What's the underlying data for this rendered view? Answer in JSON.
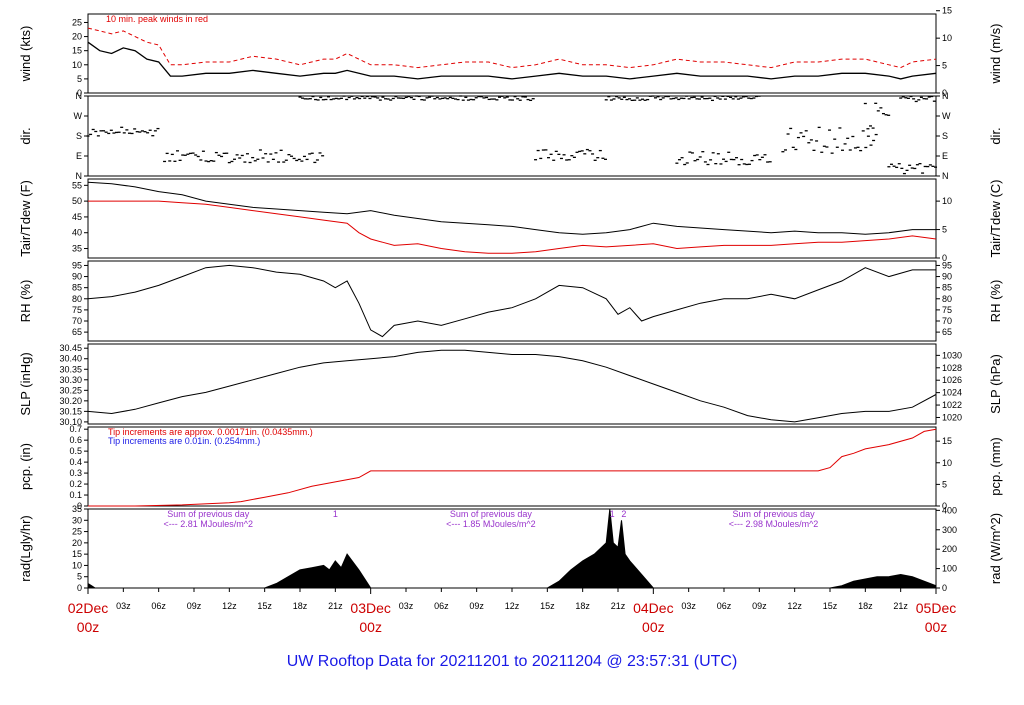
{
  "title": "UW Rooftop Data for 20211201  to  20211204 @ 23:57:31  (UTC)",
  "colors": {
    "axis": "#000000",
    "primary": "#000000",
    "red": "#e00000",
    "blue": "#1a1ae6",
    "purple": "#9933cc",
    "day_label": "#cc0000"
  },
  "x_axis": {
    "unit": "hours since 2021-12-02 00z",
    "range": [
      0,
      72
    ],
    "hour_ticks": [
      {
        "x": 3,
        "label": "03z"
      },
      {
        "x": 6,
        "label": "06z"
      },
      {
        "x": 9,
        "label": "09z"
      },
      {
        "x": 12,
        "label": "12z"
      },
      {
        "x": 15,
        "label": "15z"
      },
      {
        "x": 18,
        "label": "18z"
      },
      {
        "x": 21,
        "label": "21z"
      },
      {
        "x": 27,
        "label": "03z"
      },
      {
        "x": 30,
        "label": "06z"
      },
      {
        "x": 33,
        "label": "09z"
      },
      {
        "x": 36,
        "label": "12z"
      },
      {
        "x": 39,
        "label": "15z"
      },
      {
        "x": 42,
        "label": "18z"
      },
      {
        "x": 45,
        "label": "21z"
      },
      {
        "x": 51,
        "label": "03z"
      },
      {
        "x": 54,
        "label": "06z"
      },
      {
        "x": 57,
        "label": "09z"
      },
      {
        "x": 60,
        "label": "12z"
      },
      {
        "x": 63,
        "label": "15z"
      },
      {
        "x": 66,
        "label": "18z"
      },
      {
        "x": 69,
        "label": "21z"
      }
    ],
    "day_labels": [
      {
        "x": 0,
        "day": "02Dec",
        "time": "00z"
      },
      {
        "x": 24,
        "day": "03Dec",
        "time": "00z"
      },
      {
        "x": 48,
        "day": "04Dec",
        "time": "00z"
      },
      {
        "x": 72,
        "day": "05Dec",
        "time": "00z"
      }
    ]
  },
  "chart_data": [
    {
      "id": "wind",
      "type": "line",
      "ylabel": "wind (kts)",
      "ylabel_right": "wind (m/s)",
      "ylim": [
        0,
        28
      ],
      "yticks": [
        0,
        5,
        10,
        15,
        20,
        25
      ],
      "right_ticks": [
        {
          "label": "0",
          "value": 0
        },
        {
          "label": "5",
          "value": 9.72
        },
        {
          "label": "10",
          "value": 19.44
        },
        {
          "label": "15",
          "value": 29.16
        }
      ],
      "note": "10 min. peak winds in red",
      "series": [
        {
          "name": "wind",
          "color": "#000000",
          "x": [
            0,
            1,
            2,
            3,
            4,
            5,
            6,
            7,
            8,
            10,
            12,
            14,
            16,
            18,
            20,
            21,
            22,
            24,
            26,
            28,
            30,
            32,
            34,
            36,
            38,
            40,
            42,
            44,
            46,
            48,
            50,
            52,
            54,
            56,
            58,
            60,
            62,
            64,
            66,
            68,
            69,
            70,
            72
          ],
          "y": [
            18,
            15,
            14,
            16,
            15,
            12,
            11,
            6,
            6,
            7,
            7,
            8,
            7,
            6,
            7,
            7,
            8,
            6,
            6,
            5,
            6,
            6,
            6,
            5,
            6,
            7,
            6,
            6,
            5,
            6,
            7,
            6,
            6,
            6,
            5,
            6,
            6,
            7,
            7,
            6,
            5,
            6,
            7
          ]
        },
        {
          "name": "10 min. peak winds",
          "color": "#e00000",
          "x": [
            0,
            1,
            2,
            3,
            4,
            5,
            6,
            7,
            8,
            10,
            12,
            14,
            16,
            18,
            20,
            21,
            22,
            24,
            26,
            28,
            30,
            32,
            34,
            36,
            38,
            40,
            42,
            44,
            46,
            48,
            50,
            52,
            54,
            56,
            58,
            60,
            62,
            64,
            66,
            68,
            69,
            70,
            72
          ],
          "y": [
            23,
            22,
            21,
            22,
            20,
            18,
            17,
            10,
            10,
            11,
            11,
            13,
            12,
            10,
            12,
            12,
            14,
            10,
            10,
            9,
            10,
            11,
            11,
            9,
            10,
            12,
            10,
            10,
            9,
            10,
            12,
            11,
            11,
            10,
            9,
            11,
            11,
            12,
            12,
            10,
            9,
            11,
            12
          ]
        }
      ]
    },
    {
      "id": "dir",
      "type": "scatter",
      "ylabel": "dir.",
      "ylabel_right": "dir.",
      "ylim": [
        0,
        360
      ],
      "yticks": [
        0,
        90,
        180,
        270,
        360
      ],
      "ytick_labels": [
        "N",
        "E",
        "S",
        "W",
        "N"
      ],
      "series": [
        {
          "name": "wind direction",
          "color": "#000000",
          "segments": [
            {
              "x0": 0,
              "x1": 6,
              "ymin": 180,
              "ymax": 220
            },
            {
              "x0": 6.5,
              "x1": 20,
              "ymin": 60,
              "ymax": 120
            },
            {
              "x0": 18,
              "x1": 38,
              "ymin": 340,
              "ymax": 360
            },
            {
              "x0": 38,
              "x1": 44,
              "ymin": 70,
              "ymax": 120
            },
            {
              "x0": 44,
              "x1": 57,
              "ymin": 340,
              "ymax": 360
            },
            {
              "x0": 50,
              "x1": 58,
              "ymin": 50,
              "ymax": 110
            },
            {
              "x0": 59,
              "x1": 67,
              "ymin": 100,
              "ymax": 220
            },
            {
              "x0": 66,
              "x1": 68,
              "ymin": 200,
              "ymax": 330
            },
            {
              "x0": 69,
              "x1": 72,
              "ymin": 330,
              "ymax": 360
            },
            {
              "x0": 68,
              "x1": 72,
              "ymin": 0,
              "ymax": 60
            }
          ]
        }
      ]
    },
    {
      "id": "temp",
      "type": "line",
      "ylabel": "Tair/Tdew (F)",
      "ylabel_right": "Tair/Tdew (C)",
      "ylim": [
        32,
        57
      ],
      "yticks": [
        35,
        40,
        45,
        50,
        55
      ],
      "right_ticks": [
        {
          "label": "0",
          "value": 32
        },
        {
          "label": "5",
          "value": 41
        },
        {
          "label": "10",
          "value": 50
        }
      ],
      "series": [
        {
          "name": "Tair",
          "color": "#000000",
          "x": [
            0,
            2,
            4,
            6,
            8,
            10,
            12,
            14,
            16,
            18,
            20,
            22,
            24,
            26,
            28,
            30,
            32,
            34,
            36,
            38,
            40,
            42,
            44,
            46,
            48,
            50,
            52,
            54,
            56,
            58,
            60,
            62,
            64,
            66,
            68,
            70,
            72
          ],
          "y": [
            56,
            55.5,
            54.5,
            53,
            52,
            50,
            49,
            48,
            47.5,
            47,
            46.5,
            46,
            47,
            45.5,
            44.5,
            43.5,
            43,
            42.5,
            42,
            41,
            40,
            39.5,
            40,
            41,
            43,
            42,
            41.5,
            41,
            40.5,
            40,
            40.5,
            40,
            40,
            39.5,
            40,
            41,
            41
          ]
        },
        {
          "name": "Tdew",
          "color": "#e00000",
          "x": [
            0,
            2,
            4,
            6,
            8,
            10,
            12,
            14,
            16,
            18,
            20,
            22,
            23,
            24,
            25,
            26,
            28,
            30,
            32,
            34,
            36,
            38,
            40,
            42,
            44,
            46,
            48,
            50,
            52,
            54,
            56,
            58,
            60,
            62,
            64,
            66,
            68,
            70,
            72
          ],
          "y": [
            50,
            50,
            50,
            50,
            49.5,
            49,
            48,
            47,
            46,
            45,
            44,
            43,
            40,
            38,
            37,
            36,
            36.5,
            35,
            34,
            33.5,
            33.5,
            34,
            35,
            36,
            35.5,
            36,
            36.5,
            35,
            35.5,
            36,
            36,
            36,
            36.5,
            37,
            37,
            37.5,
            38,
            39,
            38
          ]
        }
      ]
    },
    {
      "id": "rh",
      "type": "line",
      "ylabel": "RH (%)",
      "ylabel_right": "RH (%)",
      "ylim": [
        61,
        97
      ],
      "yticks": [
        65,
        70,
        75,
        80,
        85,
        90,
        95
      ],
      "right_ticks": [
        {
          "label": "65",
          "value": 65
        },
        {
          "label": "70",
          "value": 70
        },
        {
          "label": "75",
          "value": 75
        },
        {
          "label": "80",
          "value": 80
        },
        {
          "label": "85",
          "value": 85
        },
        {
          "label": "90",
          "value": 90
        },
        {
          "label": "95",
          "value": 95
        }
      ],
      "series": [
        {
          "name": "RH",
          "color": "#000000",
          "x": [
            0,
            2,
            4,
            6,
            8,
            10,
            12,
            14,
            16,
            18,
            20,
            21,
            22,
            23,
            24,
            25,
            26,
            28,
            30,
            32,
            34,
            36,
            38,
            40,
            42,
            44,
            45,
            46,
            47,
            48,
            50,
            52,
            54,
            56,
            58,
            60,
            62,
            64,
            66,
            68,
            70,
            72
          ],
          "y": [
            80,
            81,
            83,
            86,
            90,
            94,
            95,
            94,
            92,
            91,
            88,
            85,
            88,
            78,
            66,
            63,
            68,
            70,
            68,
            71,
            74,
            76,
            80,
            86,
            85,
            80,
            73,
            76,
            70,
            72,
            75,
            78,
            80,
            80,
            82,
            80,
            84,
            88,
            94,
            90,
            93,
            93
          ]
        }
      ]
    },
    {
      "id": "slp",
      "type": "line",
      "ylabel": "SLP (inHg)",
      "ylabel_right": "SLP (hPa)",
      "ylim": [
        30.09,
        30.47
      ],
      "yticks": [
        30.1,
        30.15,
        30.2,
        30.25,
        30.3,
        30.35,
        30.4,
        30.45
      ],
      "ytick_labels": [
        "30.10",
        "30.15",
        "30.20",
        "30.25",
        "30.30",
        "30.35",
        "30.40",
        "30.45"
      ],
      "right_ticks": [
        {
          "label": "1020",
          "value": 30.121
        },
        {
          "label": "1022",
          "value": 30.18
        },
        {
          "label": "1024",
          "value": 30.239
        },
        {
          "label": "1026",
          "value": 30.298
        },
        {
          "label": "1028",
          "value": 30.357
        },
        {
          "label": "1030",
          "value": 30.416
        }
      ],
      "series": [
        {
          "name": "SLP",
          "color": "#000000",
          "x": [
            0,
            2,
            4,
            6,
            8,
            10,
            12,
            14,
            16,
            18,
            20,
            22,
            24,
            26,
            28,
            30,
            32,
            34,
            36,
            38,
            40,
            42,
            44,
            46,
            48,
            50,
            52,
            54,
            56,
            58,
            60,
            62,
            64,
            66,
            68,
            70,
            72
          ],
          "y": [
            30.15,
            30.14,
            30.16,
            30.19,
            30.22,
            30.24,
            30.27,
            30.3,
            30.33,
            30.36,
            30.38,
            30.39,
            30.4,
            30.41,
            30.43,
            30.44,
            30.44,
            30.43,
            30.42,
            30.42,
            30.41,
            30.39,
            30.36,
            30.32,
            30.28,
            30.24,
            30.2,
            30.17,
            30.13,
            30.11,
            30.1,
            30.12,
            30.14,
            30.15,
            30.15,
            30.17,
            30.23
          ]
        }
      ]
    },
    {
      "id": "pcp",
      "type": "line",
      "ylabel": "pcp. (in)",
      "ylabel_right": "pcp. (mm)",
      "ylim": [
        0,
        0.72
      ],
      "yticks": [
        0,
        0.1,
        0.2,
        0.3,
        0.4,
        0.5,
        0.6,
        0.7
      ],
      "ytick_labels": [
        "0",
        "0.1",
        "0.2",
        "0.3",
        "0.4",
        "0.5",
        "0.6",
        "0.7"
      ],
      "right_ticks": [
        {
          "label": "0",
          "value": 0
        },
        {
          "label": "5",
          "value": 0.197
        },
        {
          "label": "10",
          "value": 0.394
        },
        {
          "label": "15",
          "value": 0.591
        }
      ],
      "notes": [
        {
          "text": "Tip increments are approx. 0.00171in. (0.0435mm.)",
          "color": "#e00000"
        },
        {
          "text": "Tip increments are 0.01in. (0.254mm.)",
          "color": "#1a1ae6"
        }
      ],
      "series": [
        {
          "name": "pcp",
          "color": "#e00000",
          "x": [
            0,
            4,
            8,
            12,
            13,
            15,
            17,
            19,
            21,
            23,
            24,
            26,
            30,
            40,
            48,
            58,
            62,
            63,
            64,
            65,
            66,
            68,
            70,
            71,
            72
          ],
          "y": [
            0,
            0,
            0.01,
            0.03,
            0.04,
            0.08,
            0.12,
            0.18,
            0.22,
            0.26,
            0.32,
            0.32,
            0.32,
            0.32,
            0.32,
            0.32,
            0.32,
            0.35,
            0.45,
            0.48,
            0.52,
            0.56,
            0.62,
            0.68,
            0.7
          ]
        }
      ]
    },
    {
      "id": "rad",
      "type": "area",
      "ylabel": "rad(Lgly/hr)",
      "ylabel_right": "rad (W/m^2)",
      "ylim": [
        0,
        35
      ],
      "yticks": [
        0,
        5,
        10,
        15,
        20,
        25,
        30,
        35
      ],
      "right_ticks": [
        {
          "label": "0",
          "value": 0
        },
        {
          "label": "100",
          "value": 8.6
        },
        {
          "label": "200",
          "value": 17.2
        },
        {
          "label": "300",
          "value": 25.8
        },
        {
          "label": "400",
          "value": 34.4
        }
      ],
      "annotations": [
        {
          "x": 8,
          "line1": "Sum of previous day",
          "line2": "<--- 2.81 MJoules/m^2"
        },
        {
          "x": 32,
          "line1": "Sum of previous day",
          "line2": "<--- 1.85 MJoules/m^2"
        },
        {
          "x": 56,
          "line1": "Sum of previous day",
          "line2": "<--- 2.98 MJoules/m^2"
        }
      ],
      "tip_markers": [
        {
          "x": 21,
          "label": "1"
        },
        {
          "x": 44.5,
          "label": "1"
        },
        {
          "x": 45.5,
          "label": "2"
        }
      ],
      "series": [
        {
          "name": "rad",
          "color": "#000000",
          "x": [
            0,
            0.3,
            0.6,
            15,
            16,
            17,
            18,
            19,
            20,
            20.5,
            21,
            21.5,
            22,
            23,
            24,
            39,
            40,
            41,
            42,
            43,
            44,
            44.3,
            44.6,
            45,
            45.3,
            45.6,
            46,
            47,
            48,
            63,
            64,
            65,
            66,
            67,
            68,
            69,
            70,
            71,
            72
          ],
          "y": [
            2,
            1,
            0,
            0,
            2,
            5,
            8,
            9,
            10,
            8,
            12,
            9,
            15,
            8,
            0,
            0,
            3,
            8,
            12,
            15,
            20,
            35,
            20,
            18,
            30,
            15,
            12,
            6,
            0,
            0,
            1,
            3,
            4,
            5,
            5,
            6,
            5,
            3,
            1
          ]
        }
      ]
    }
  ]
}
